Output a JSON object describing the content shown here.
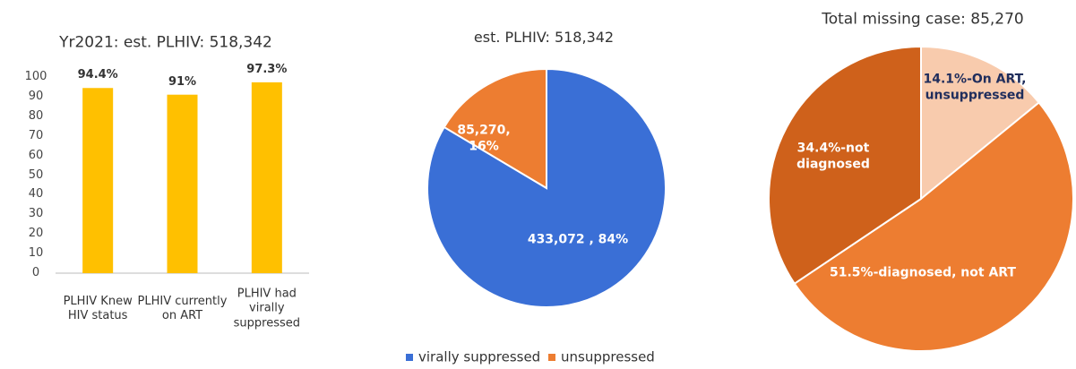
{
  "chart_data": [
    {
      "type": "bar",
      "title": "Yr2021: est. PLHIV: 518,342",
      "categories": [
        "PLHIV Knew HIV status",
        "PLHIV currently on ART",
        "PLHIV had virally suppressed"
      ],
      "values": [
        94.4,
        91,
        97.3
      ],
      "value_labels": [
        "94.4%",
        "91%",
        "97.3%"
      ],
      "color": "#ffc000",
      "ylim": [
        0,
        100
      ],
      "yticks": [
        0,
        10,
        20,
        30,
        40,
        50,
        60,
        70,
        80,
        90,
        100
      ],
      "grid": false
    },
    {
      "type": "pie",
      "title": "est. PLHIV: 518,342",
      "categories": [
        "virally suppressed",
        "unsuppressed"
      ],
      "values": [
        433072,
        85270
      ],
      "value_labels": [
        "433,072 , 84%",
        "85,270, 16%"
      ],
      "colors": [
        "#3a6fd6",
        "#ed7d31"
      ],
      "legend": "bottom"
    },
    {
      "type": "pie",
      "title": "Total missing case: 85,270",
      "values": [
        14.1,
        51.5,
        34.4
      ],
      "value_labels": [
        "14.1%-On ART, unsuppressed",
        "51.5%-diagnosed, not ART",
        "34.4%-not diagnosed"
      ],
      "colors": [
        "#f8cbad",
        "#ed7d31",
        "#cf611b"
      ]
    }
  ]
}
